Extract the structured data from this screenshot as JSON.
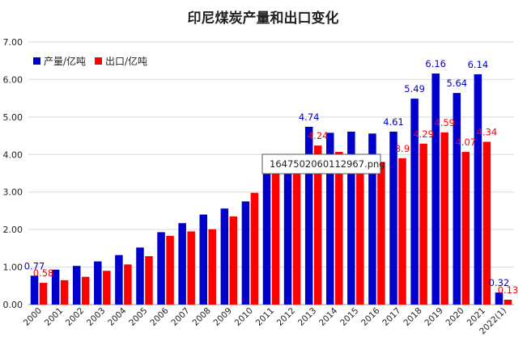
{
  "chart_data": {
    "type": "bar",
    "title": "印尼煤炭产量和出口变化",
    "categories": [
      "2000",
      "2001",
      "2002",
      "2003",
      "2004",
      "2005",
      "2006",
      "2007",
      "2008",
      "2009",
      "2010",
      "2011",
      "2012",
      "2013",
      "2014",
      "2015",
      "2016",
      "2017",
      "2018",
      "2019",
      "2020",
      "2021",
      "2022(1)"
    ],
    "series": [
      {
        "name": "产量/亿吨",
        "color": "#0000cc",
        "values": [
          0.77,
          0.93,
          1.03,
          1.15,
          1.32,
          1.52,
          1.93,
          2.17,
          2.4,
          2.56,
          2.75,
          3.53,
          3.86,
          4.74,
          4.58,
          4.61,
          4.56,
          4.61,
          5.49,
          6.16,
          5.64,
          6.14,
          0.32
        ],
        "labeled": {
          "0": "0.77",
          "13": "4.74",
          "17": "4.61",
          "18": "5.49",
          "19": "6.16",
          "20": "5.64",
          "21": "6.14",
          "22": "0.32"
        }
      },
      {
        "name": "出口/亿吨",
        "color": "#ff0000",
        "values": [
          0.58,
          0.65,
          0.74,
          0.9,
          1.07,
          1.29,
          1.83,
          1.95,
          2.01,
          2.35,
          2.98,
          3.58,
          3.83,
          4.24,
          4.07,
          3.9,
          3.8,
          3.9,
          4.29,
          4.59,
          4.07,
          4.34,
          0.13
        ],
        "labeled": {
          "0": "0.58",
          "13": "4.24",
          "17": "3.9",
          "18": "4.29",
          "19": "4.59",
          "20": "4.07",
          "21": "4.34",
          "22": "0.13"
        }
      }
    ],
    "y_ticks": [
      "0.00",
      "1.00",
      "2.00",
      "3.00",
      "4.00",
      "5.00",
      "6.00",
      "7.00"
    ],
    "ylim": [
      0,
      7
    ],
    "legend": "top-left",
    "grid": true
  },
  "tooltip": {
    "text": "1647502060112967.png"
  }
}
